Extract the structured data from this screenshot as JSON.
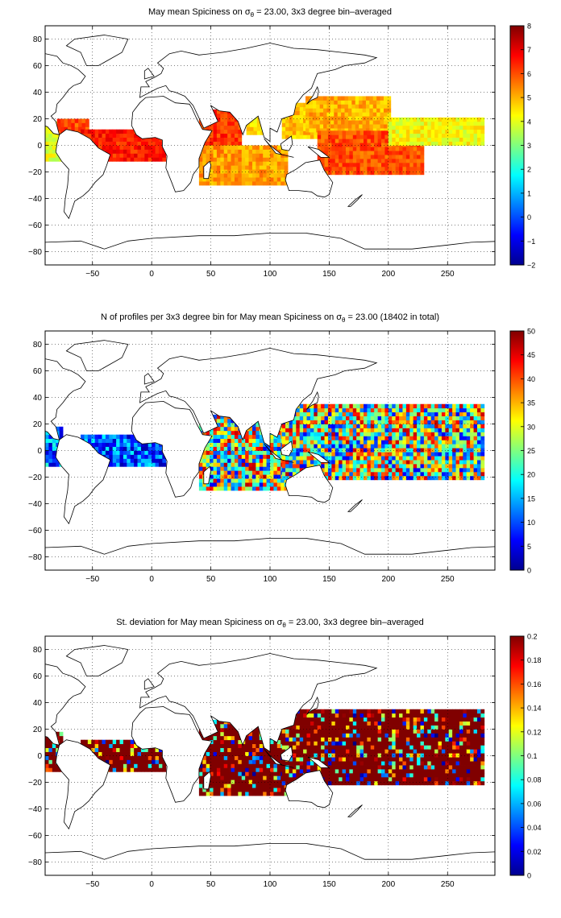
{
  "panels": [
    {
      "title_pre": "May mean Spiciness on ",
      "title_sym": "σ",
      "title_sub": "θ",
      "title_post": " = 23.00, 3x3 degree bin–averaged",
      "colorbar_ticks": [
        "8",
        "7",
        "6",
        "5",
        "4",
        "3",
        "2",
        "1",
        "0",
        "−1",
        "−2"
      ]
    },
    {
      "title_pre": "N of profiles per 3x3 degree bin for May mean Spiciness on ",
      "title_sym": "σ",
      "title_sub": "θ",
      "title_post": " = 23.00 (18402 in total)",
      "colorbar_ticks": [
        "50",
        "45",
        "40",
        "35",
        "30",
        "25",
        "20",
        "15",
        "10",
        "5",
        "0"
      ]
    },
    {
      "title_pre": "St. deviation for May mean Spiciness on ",
      "title_sym": "σ",
      "title_sub": "θ",
      "title_post": " = 23.00, 3x3 degree bin–averaged",
      "colorbar_ticks": [
        "0.2",
        "0.18",
        "0.16",
        "0.14",
        "0.12",
        "0.1",
        "0.08",
        "0.06",
        "0.04",
        "0.02",
        "0"
      ]
    }
  ],
  "x_ticks": [
    "−50",
    "0",
    "50",
    "100",
    "150",
    "200",
    "250"
  ],
  "y_ticks": [
    "80",
    "60",
    "40",
    "20",
    "0",
    "−20",
    "−40",
    "−60",
    "−80"
  ],
  "chart_data": [
    {
      "type": "heatmap",
      "title": "May mean Spiciness on σθ = 23.00, 3x3 degree bin–averaged",
      "xlim": [
        -90,
        290
      ],
      "ylim": [
        -90,
        90
      ],
      "clim": [
        -2,
        8
      ],
      "colormap": "jet",
      "grid": true,
      "regions": [
        {
          "lon": [
            -90,
            -75
          ],
          "lat": [
            -12,
            18
          ],
          "value": 4.0
        },
        {
          "lon": [
            -80,
            -55
          ],
          "lat": [
            8,
            20
          ],
          "value": 6.0
        },
        {
          "lon": [
            -60,
            10
          ],
          "lat": [
            -12,
            12
          ],
          "value": 6.5
        },
        {
          "lon": [
            40,
            75
          ],
          "lat": [
            0,
            25
          ],
          "value": 6.3
        },
        {
          "lon": [
            40,
            115
          ],
          "lat": [
            -30,
            0
          ],
          "value": 5.2
        },
        {
          "lon": [
            80,
            95
          ],
          "lat": [
            8,
            22
          ],
          "value": 4.5
        },
        {
          "lon": [
            110,
            140
          ],
          "lat": [
            5,
            30
          ],
          "value": 4.8
        },
        {
          "lon": [
            130,
            200
          ],
          "lat": [
            10,
            35
          ],
          "value": 5.0
        },
        {
          "lon": [
            140,
            230
          ],
          "lat": [
            -22,
            10
          ],
          "value": 6.0
        },
        {
          "lon": [
            200,
            280
          ],
          "lat": [
            0,
            20
          ],
          "value": 4.2
        }
      ]
    },
    {
      "type": "heatmap",
      "title": "N of profiles per 3x3 degree bin for May mean Spiciness on σθ = 23.00 (18402 in total)",
      "xlim": [
        -90,
        290
      ],
      "ylim": [
        -90,
        90
      ],
      "clim": [
        0,
        50
      ],
      "colormap": "jet",
      "grid": true,
      "total_profiles": 18402,
      "regions": [
        {
          "lon": [
            -90,
            -75
          ],
          "lat": [
            -12,
            18
          ],
          "value": 12
        },
        {
          "lon": [
            -60,
            10
          ],
          "lat": [
            -12,
            12
          ],
          "value": 10
        },
        {
          "lon": [
            40,
            115
          ],
          "lat": [
            -30,
            25
          ],
          "value": 25
        },
        {
          "lon": [
            110,
            280
          ],
          "lat": [
            -22,
            35
          ],
          "value": 25
        }
      ]
    },
    {
      "type": "heatmap",
      "title": "St. deviation for May mean Spiciness on σθ = 23.00, 3x3 degree bin–averaged",
      "xlim": [
        -90,
        290
      ],
      "ylim": [
        -90,
        90
      ],
      "clim": [
        0,
        0.2
      ],
      "colormap": "jet",
      "grid": true,
      "regions": [
        {
          "lon": [
            -90,
            -75
          ],
          "lat": [
            -12,
            18
          ],
          "value": 0.17
        },
        {
          "lon": [
            -60,
            10
          ],
          "lat": [
            -12,
            12
          ],
          "value": 0.19
        },
        {
          "lon": [
            40,
            115
          ],
          "lat": [
            -30,
            25
          ],
          "value": 0.19
        },
        {
          "lon": [
            110,
            280
          ],
          "lat": [
            -22,
            35
          ],
          "value": 0.18
        }
      ]
    }
  ]
}
